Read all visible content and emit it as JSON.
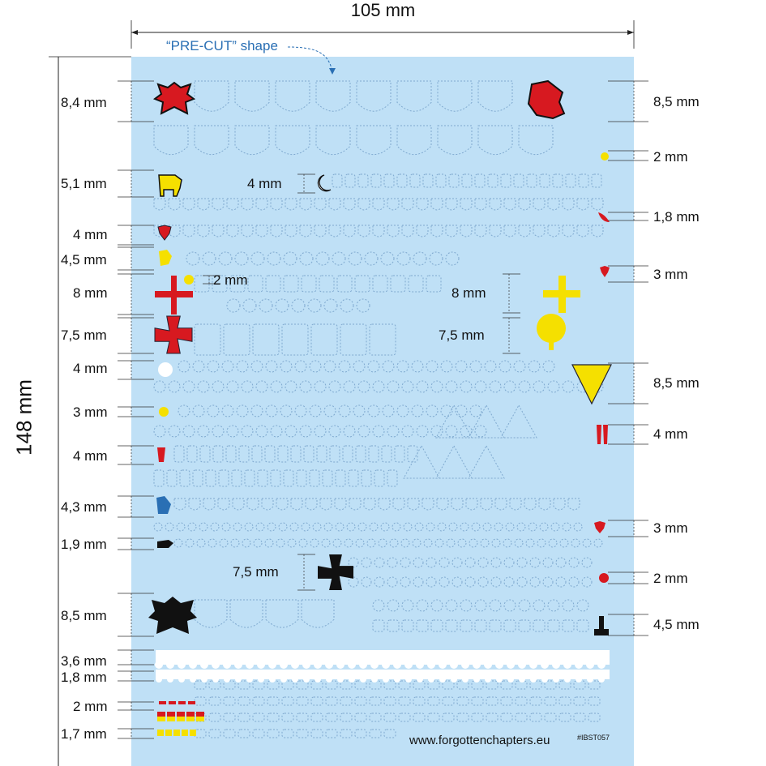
{
  "header": {
    "width_label": "105 mm",
    "height_label": "148 mm",
    "precut_label": "“PRE-CUT” shape"
  },
  "left_dims": [
    "8,4 mm",
    "5,1 mm",
    "4 mm",
    "4,5 mm",
    "8 mm",
    "7,5 mm",
    "4 mm",
    "3 mm",
    "4 mm",
    "4,3 mm",
    "1,9 mm",
    "8,5 mm",
    "3,6 mm",
    "1,8 mm",
    "2 mm",
    "1,7 mm"
  ],
  "right_dims": [
    "8,5 mm",
    "2 mm",
    "1,8 mm",
    "3 mm",
    "8,5 mm",
    "4 mm",
    "3 mm",
    "2 mm",
    "4,5 mm"
  ],
  "inner_dims": {
    "moon": "4 mm",
    "dot": "2 mm",
    "cross_right": "8 mm",
    "tree": "7,5 mm",
    "cross_black": "7,5 mm"
  },
  "footer": {
    "url": "www.forgottenchapters.eu",
    "code": "#IBST057"
  },
  "colors": {
    "sheet": "#bfe0f6",
    "red": "#d71920",
    "yellow": "#f5e000",
    "blue": "#2a6fb4",
    "black": "#111111"
  }
}
